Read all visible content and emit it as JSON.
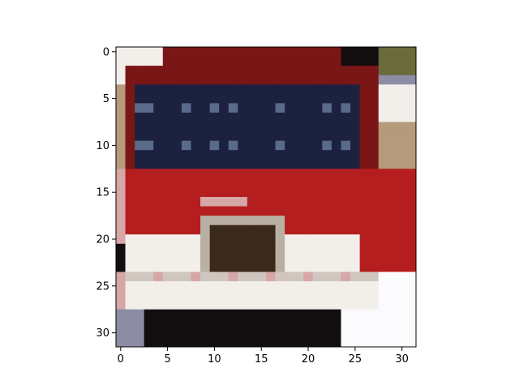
{
  "image": {
    "subject": "pixelated red truck front",
    "rows": 32,
    "cols": 32,
    "colors": {
      "red": "#b41e1e",
      "dark_red": "#7a1616",
      "windshield": "#1c2140",
      "windshield_light": "#5a6a8a",
      "grille_frame": "#b9b0a4",
      "grille": "#3b2a1c",
      "white": "#f2eeea",
      "light_gray": "#cfc6bf",
      "pinkish": "#d7a6a6",
      "black": "#120d0e",
      "bg_white": "#fbfbfd",
      "bg_gray": "#8c8ca4",
      "foliage": "#6b6a3a",
      "tan": "#b59a7c"
    }
  },
  "axes": {
    "xticks": [
      "0",
      "5",
      "10",
      "15",
      "20",
      "25",
      "30"
    ],
    "yticks": [
      "0",
      "5",
      "10",
      "15",
      "20",
      "25",
      "30"
    ]
  }
}
